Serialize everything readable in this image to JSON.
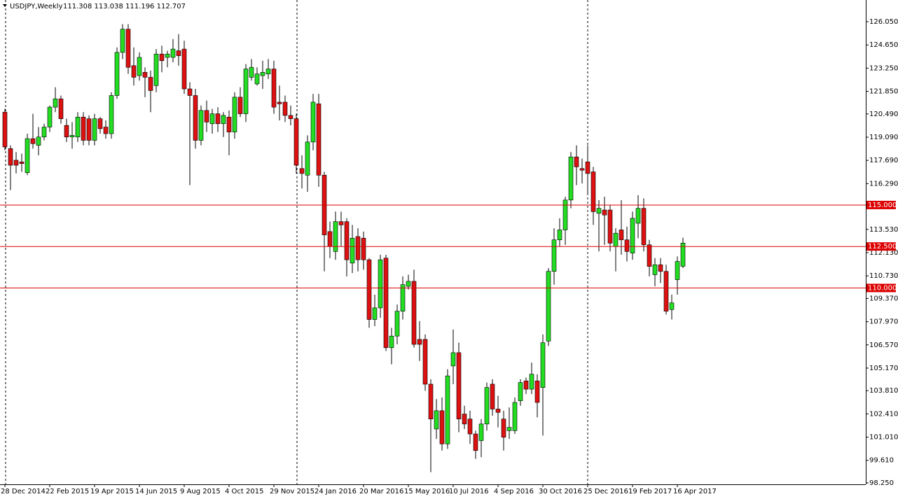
{
  "chart_data": {
    "type": "candlestick",
    "symbol": "USDJPY,Weekly",
    "last_bar_label": "111.308 113.038 111.196 112.707",
    "up_color": "#22dd22",
    "down_color": "#dd1111",
    "level_color": "#dd0000",
    "categories": [
      "28 Dec 2014",
      null,
      null,
      null,
      null,
      null,
      null,
      null,
      "22 Feb 2015",
      null,
      null,
      null,
      null,
      null,
      null,
      null,
      "19 Apr 2015",
      null,
      null,
      null,
      null,
      null,
      null,
      null,
      "14 Jun 2015",
      null,
      null,
      null,
      null,
      null,
      null,
      null,
      "9 Aug 2015",
      null,
      null,
      null,
      null,
      null,
      null,
      null,
      "4 Oct 2015",
      null,
      null,
      null,
      null,
      null,
      null,
      null,
      "29 Nov 2015",
      null,
      null,
      null,
      null,
      null,
      null,
      null,
      "24 Jan 2016",
      null,
      null,
      null,
      null,
      null,
      null,
      null,
      "20 Mar 2016",
      null,
      null,
      null,
      null,
      null,
      null,
      null,
      "15 May 2016",
      null,
      null,
      null,
      null,
      null,
      null,
      null,
      "10 Jul 2016",
      null,
      null,
      null,
      null,
      null,
      null,
      null,
      "4 Sep 2016",
      null,
      null,
      null,
      null,
      null,
      null,
      null,
      "30 Oct 2016",
      null,
      null,
      null,
      null,
      null,
      null,
      null,
      "25 Dec 2016",
      null,
      null,
      null,
      null,
      null,
      null,
      null,
      "19 Feb 2017",
      null,
      null,
      null,
      null,
      null,
      null,
      null,
      "16 Apr 2017",
      null
    ],
    "open": [
      120.6,
      118.4,
      117.7,
      117.6,
      116.95,
      119.0,
      118.6,
      119.1,
      119.7,
      120.9,
      121.4,
      119.8,
      119.1,
      119.1,
      120.3,
      120.2,
      118.9,
      120.2,
      119.7,
      119.3,
      121.6,
      124.2,
      125.6,
      123.4,
      122.8,
      123.0,
      122.7,
      122.2,
      124.1,
      123.9,
      123.9,
      124.3,
      124.4,
      122.0,
      121.6,
      118.9,
      120.7,
      119.9,
      120.5,
      119.9,
      120.3,
      119.4,
      121.5,
      120.5,
      122.7,
      122.3,
      122.8,
      122.9,
      123.2,
      121.2,
      121.2,
      120.4,
      120.2,
      117.2,
      116.8,
      118.8,
      121.1,
      116.8,
      113.4,
      112.2,
      114.0,
      114.0,
      111.5,
      113.1,
      113.0,
      111.7,
      108.1,
      108.8,
      111.8,
      106.4,
      107.1,
      108.6,
      110.1,
      110.4,
      106.9,
      106.9,
      104.2,
      101.5,
      102.6,
      100.6,
      105.3,
      106.1,
      102.4,
      102.1,
      101.2,
      100.8,
      101.8,
      104.2,
      102.7,
      102.1,
      101.4,
      101.4,
      103.2,
      104.4,
      103.9,
      104.4,
      104.0,
      106.8,
      111.0,
      112.9,
      113.5,
      115.3,
      117.9,
      117.2,
      117.6,
      117.0,
      114.5,
      114.7,
      114.7,
      112.5,
      113.5,
      112.9,
      112.1,
      113.9,
      114.8,
      112.6,
      110.8,
      111.4,
      111.0,
      108.7,
      110.5,
      111.308
    ],
    "high": [
      120.8,
      118.6,
      118.2,
      118.1,
      119.3,
      120.5,
      119.7,
      119.9,
      121.0,
      122.1,
      121.6,
      120.2,
      120.0,
      120.6,
      120.6,
      120.4,
      120.5,
      120.3,
      120.1,
      121.8,
      124.5,
      125.9,
      125.9,
      124.5,
      124.2,
      123.3,
      123.1,
      124.4,
      124.6,
      124.3,
      125.0,
      125.3,
      124.9,
      122.4,
      122.0,
      121.0,
      121.3,
      120.8,
      120.9,
      120.6,
      120.7,
      121.8,
      122.1,
      123.5,
      123.8,
      123.3,
      123.7,
      123.8,
      123.7,
      122.2,
      121.6,
      121.0,
      120.5,
      118.0,
      119.2,
      121.7,
      121.7,
      117.0,
      114.0,
      114.6,
      114.6,
      114.2,
      113.8,
      113.6,
      113.4,
      111.8,
      109.6,
      112.0,
      112.0,
      107.6,
      109.0,
      110.7,
      110.8,
      111.1,
      108.0,
      107.2,
      104.5,
      103.3,
      103.4,
      105.1,
      107.5,
      106.7,
      102.9,
      102.6,
      101.4,
      102.1,
      104.3,
      104.5,
      103.5,
      102.6,
      102.8,
      103.4,
      104.5,
      104.6,
      105.5,
      104.8,
      107.2,
      111.2,
      113.6,
      114.2,
      115.5,
      118.2,
      118.6,
      117.8,
      118.6,
      117.3,
      115.3,
      115.5,
      115.0,
      113.6,
      115.3,
      113.7,
      114.6,
      115.6,
      115.4,
      112.9,
      111.8,
      111.8,
      111.4,
      109.6,
      111.9,
      113.038
    ],
    "low": [
      118.3,
      115.9,
      116.9,
      117.0,
      116.8,
      118.4,
      118.0,
      118.9,
      119.4,
      120.6,
      119.9,
      118.8,
      118.4,
      118.8,
      118.6,
      118.6,
      118.6,
      119.3,
      119.0,
      119.0,
      121.4,
      123.8,
      122.9,
      122.2,
      122.5,
      121.5,
      120.6,
      121.8,
      123.0,
      123.3,
      123.6,
      123.4,
      121.7,
      116.2,
      118.4,
      118.6,
      119.4,
      119.3,
      119.4,
      119.1,
      118.0,
      119.0,
      120.3,
      120.0,
      122.5,
      122.2,
      122.0,
      122.6,
      120.5,
      120.1,
      120.0,
      119.8,
      116.9,
      116.0,
      115.8,
      118.3,
      116.1,
      111.0,
      111.8,
      111.7,
      112.5,
      110.7,
      110.9,
      111.0,
      111.1,
      107.6,
      107.7,
      108.2,
      106.2,
      105.4,
      106.6,
      108.1,
      109.9,
      106.4,
      105.6,
      103.8,
      98.9,
      100.9,
      100.2,
      100.3,
      104.2,
      101.3,
      101.5,
      100.6,
      99.7,
      99.8,
      101.4,
      102.3,
      101.6,
      100.2,
      100.9,
      101.2,
      102.9,
      103.6,
      103.6,
      102.2,
      101.1,
      106.5,
      110.2,
      112.5,
      112.6,
      114.8,
      116.2,
      116.3,
      115.7,
      113.8,
      112.2,
      112.6,
      112.2,
      111.0,
      112.0,
      111.6,
      111.7,
      113.0,
      112.2,
      110.7,
      110.1,
      110.3,
      108.4,
      108.1,
      109.6,
      111.196
    ],
    "close": [
      118.5,
      117.4,
      117.4,
      117.5,
      119.0,
      118.7,
      119.1,
      119.7,
      120.9,
      121.4,
      120.2,
      119.1,
      119.2,
      120.3,
      118.9,
      118.9,
      120.2,
      119.6,
      119.3,
      121.6,
      124.2,
      125.6,
      123.3,
      122.7,
      123.9,
      122.7,
      121.9,
      124.1,
      123.7,
      124.1,
      124.4,
      124.0,
      122.0,
      121.6,
      118.9,
      120.7,
      120.0,
      120.5,
      119.9,
      120.4,
      119.4,
      121.5,
      120.5,
      123.2,
      123.3,
      122.9,
      123.0,
      123.2,
      120.9,
      121.1,
      120.4,
      120.2,
      117.4,
      116.9,
      118.8,
      121.2,
      116.8,
      113.2,
      112.5,
      114.0,
      113.8,
      111.7,
      113.0,
      111.7,
      111.7,
      108.1,
      108.8,
      111.7,
      106.4,
      107.1,
      108.6,
      110.2,
      110.4,
      106.6,
      106.6,
      104.2,
      102.1,
      102.6,
      100.6,
      104.7,
      106.1,
      102.1,
      101.8,
      101.2,
      100.2,
      101.8,
      104.0,
      102.7,
      102.5,
      101.0,
      101.6,
      103.1,
      104.3,
      103.9,
      104.8,
      103.1,
      106.7,
      111.0,
      112.9,
      113.5,
      115.3,
      117.9,
      117.3,
      117.1,
      116.9,
      114.6,
      114.8,
      114.4,
      112.7,
      113.3,
      112.9,
      112.2,
      114.2,
      114.8,
      112.6,
      111.3,
      111.4,
      111.0,
      108.6,
      109.1,
      111.6,
      112.707
    ],
    "ylim": [
      98.165,
      127.358
    ],
    "yticks": [
      {
        "value": 126.05,
        "label": "126.050"
      },
      {
        "value": 124.65,
        "label": "124.650"
      },
      {
        "value": 123.25,
        "label": "123.250"
      },
      {
        "value": 121.85,
        "label": "121.850"
      },
      {
        "value": 120.49,
        "label": "120.490"
      },
      {
        "value": 119.09,
        "label": "119.090"
      },
      {
        "value": 117.69,
        "label": "117.690"
      },
      {
        "value": 116.29,
        "label": "116.290"
      },
      {
        "value": 113.53,
        "label": "113.530"
      },
      {
        "value": 112.13,
        "label": "112.130"
      },
      {
        "value": 110.73,
        "label": "110.730"
      },
      {
        "value": 109.37,
        "label": "109.370"
      },
      {
        "value": 107.97,
        "label": "107.970"
      },
      {
        "value": 106.57,
        "label": "106.570"
      },
      {
        "value": 105.17,
        "label": "105.170"
      },
      {
        "value": 103.81,
        "label": "103.810"
      },
      {
        "value": 102.41,
        "label": "102.410"
      },
      {
        "value": 101.01,
        "label": "101.010"
      },
      {
        "value": 99.61,
        "label": "99.610"
      },
      {
        "value": 98.25,
        "label": "98.250"
      }
    ],
    "levels": [
      {
        "value": 115,
        "label": "115.000"
      },
      {
        "value": 112.5,
        "label": "112.500"
      },
      {
        "value": 110,
        "label": "110.000"
      }
    ]
  }
}
